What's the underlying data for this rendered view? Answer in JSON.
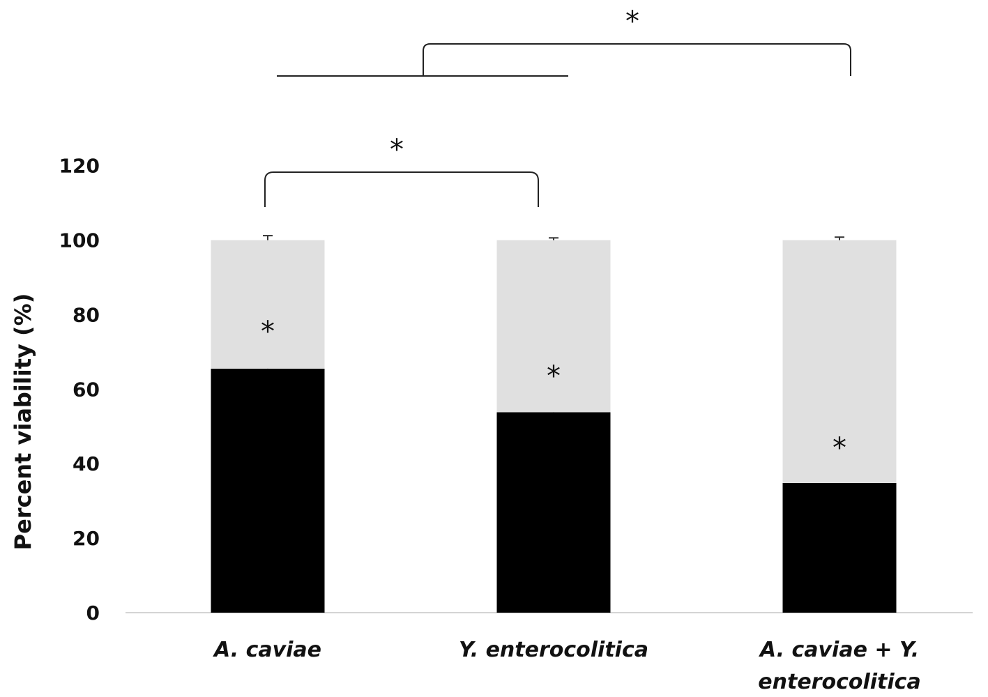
{
  "chart_data": {
    "type": "bar",
    "stacked": true,
    "ylabel": "Percent viability (%)",
    "ylim": [
      0,
      120
    ],
    "yticks": [
      0,
      20,
      40,
      60,
      80,
      100,
      120
    ],
    "grid": false,
    "legend": "none",
    "categories": [
      [
        "A. caviae"
      ],
      [
        "Y. enterocolitica"
      ],
      [
        "A. caviae + Y.",
        "enterocolitica"
      ]
    ],
    "series": [
      {
        "values": [
          65.5,
          53.8,
          34.8
        ],
        "errors": [
          1.5,
          1.2,
          0.9
        ],
        "color": "#000000"
      },
      {
        "values": [
          34.5,
          46.2,
          65.2
        ],
        "errors": [
          1.2,
          0.6,
          0.8
        ],
        "color": "#e0e0e0"
      }
    ],
    "significance": {
      "bar_marker": "*",
      "brackets": [
        {
          "from": 0,
          "to": 1,
          "label": "*"
        },
        {
          "from": "0-1",
          "to": 2,
          "label": "*"
        }
      ]
    }
  }
}
